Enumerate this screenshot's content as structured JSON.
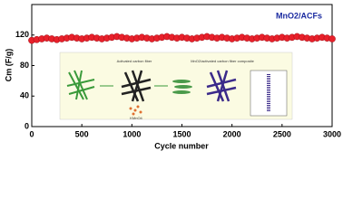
{
  "chart_data": {
    "type": "scatter",
    "xlabel": "Cycle number",
    "ylabel": "Cm (F/g)",
    "series": [
      {
        "name": "MnO2/ACFs",
        "color": "#e8202a",
        "x": [
          0,
          50,
          100,
          150,
          200,
          250,
          300,
          350,
          400,
          450,
          500,
          550,
          600,
          650,
          700,
          750,
          800,
          850,
          900,
          950,
          1000,
          1050,
          1100,
          1150,
          1200,
          1250,
          1300,
          1350,
          1400,
          1450,
          1500,
          1550,
          1600,
          1650,
          1700,
          1750,
          1800,
          1850,
          1900,
          1950,
          2000,
          2050,
          2100,
          2150,
          2200,
          2250,
          2300,
          2350,
          2400,
          2450,
          2500,
          2550,
          2600,
          2650,
          2700,
          2750,
          2800,
          2850,
          2900,
          2950,
          3000
        ],
        "values": [
          113,
          114,
          115,
          116,
          115,
          114,
          115,
          116,
          117,
          116,
          115,
          116,
          117,
          116,
          115,
          116,
          117,
          118,
          117,
          116,
          115,
          116,
          117,
          116,
          115,
          116,
          117,
          118,
          117,
          116,
          117,
          116,
          115,
          116,
          117,
          118,
          117,
          116,
          117,
          116,
          115,
          116,
          117,
          116,
          115,
          116,
          117,
          116,
          115,
          116,
          117,
          116,
          117,
          118,
          117,
          116,
          115,
          116,
          117,
          116,
          115
        ]
      }
    ],
    "xlim": [
      0,
      3000
    ],
    "xticks": [
      0,
      500,
      1000,
      1500,
      2000,
      2500,
      3000
    ],
    "ylim": [
      0,
      160
    ],
    "yticks": [
      0,
      40,
      80,
      120
    ],
    "inset_labels": [
      "Activated carbon fiber",
      "KMnO4",
      "MnO2/activated carbon fiber composite"
    ],
    "legend_color": "#1a2aa0"
  }
}
